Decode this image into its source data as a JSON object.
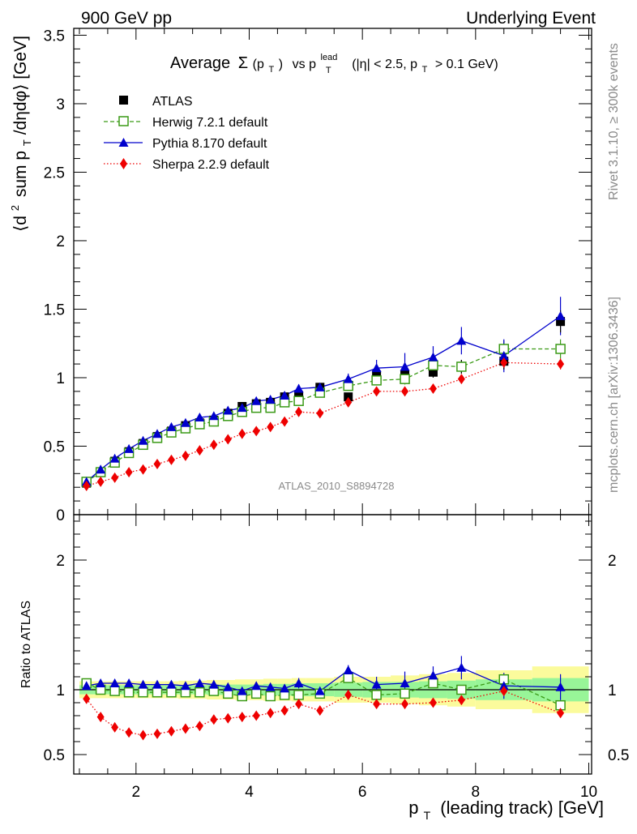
{
  "header": {
    "left": "900 GeV pp",
    "right": "Underlying Event"
  },
  "side_labels": {
    "rivet": "Rivet 3.1.10, ≥ 300k events",
    "mcplots": "mcplots.cern.ch [arXiv:1306.3436]"
  },
  "watermark": "ATLAS_2010_S8894728",
  "title": {
    "prefix": "Average",
    "sigma": "Σ",
    "sigma_arg": "(p",
    "sigma_sub": "T",
    "sigma_close": ")",
    "vs": "vs p",
    "lead_sup": "lead",
    "lead_sub": "T",
    "cond1": "(|η| < 2.5, p",
    "cond_sub": "T",
    "cond2": "> 0.1 GeV)"
  },
  "ylabel_main": {
    "part1": "⟨d",
    "sup": "2",
    "part2": "sum p",
    "sub": "T",
    "part3": "/dηdφ⟩ [GeV]"
  },
  "ylabel_ratio": "Ratio to ATLAS",
  "xlabel": {
    "p": "p",
    "sub": "T",
    "rest": "(leading track) [GeV]"
  },
  "legend": [
    {
      "label": "ATLAS"
    },
    {
      "label": "Herwig 7.2.1 default"
    },
    {
      "label": "Pythia 8.170 default"
    },
    {
      "label": "Sherpa 2.2.9 default"
    }
  ],
  "colors": {
    "atlas": "#000000",
    "herwig": "#3a9a16",
    "pythia": "#0000cc",
    "sherpa": "#ee0000",
    "band_inner": "#98f598",
    "band_outer": "#fbfb9c"
  },
  "chart_data": {
    "type": "scatter",
    "x": [
      1.125,
      1.375,
      1.625,
      1.875,
      2.125,
      2.375,
      2.625,
      2.875,
      3.125,
      3.375,
      3.625,
      3.875,
      4.125,
      4.375,
      4.625,
      4.875,
      5.25,
      5.75,
      6.25,
      6.75,
      7.25,
      7.75,
      8.5,
      9.5
    ],
    "xlim": [
      0.9,
      10.05
    ],
    "ylim_main": [
      0,
      3.55
    ],
    "ylim_ratio": [
      0.35,
      2.35
    ],
    "xticks": [
      2,
      4,
      6,
      8,
      10
    ],
    "yticks_main": [
      0,
      0.5,
      1,
      1.5,
      2,
      2.5,
      3,
      3.5
    ],
    "yticks_main_labels": [
      "0",
      "0.5",
      "1",
      "1.5",
      "2",
      "2.5",
      "3",
      "3.5"
    ],
    "yticks_ratio": [
      0.5,
      1,
      2
    ],
    "yticks_ratio_labels": [
      "0.5",
      "1",
      "2"
    ],
    "atlas": [
      0.23,
      0.31,
      0.39,
      0.46,
      0.52,
      0.57,
      0.61,
      0.65,
      0.67,
      0.69,
      0.74,
      0.79,
      0.81,
      0.82,
      0.86,
      0.87,
      0.93,
      0.86,
      1.02,
      1.02,
      1.04,
      1.08,
      1.12,
      1.41
    ],
    "atlas_err": [
      0.01,
      0.01,
      0.01,
      0.01,
      0.01,
      0.01,
      0.01,
      0.01,
      0.01,
      0.01,
      0.01,
      0.01,
      0.02,
      0.02,
      0.02,
      0.02,
      0.02,
      0.02,
      0.03,
      0.03,
      0.04,
      0.05,
      0.06,
      0.08
    ],
    "series": [
      {
        "name": "Herwig 7.2.1 default",
        "key": "herwig",
        "values": [
          0.24,
          0.31,
          0.38,
          0.45,
          0.51,
          0.56,
          0.6,
          0.63,
          0.66,
          0.68,
          0.72,
          0.75,
          0.78,
          0.78,
          0.82,
          0.83,
          0.89,
          0.94,
          0.98,
          0.99,
          1.09,
          1.08,
          1.21,
          1.21
        ],
        "errors": [
          0.01,
          0.01,
          0.01,
          0.01,
          0.01,
          0.01,
          0.01,
          0.01,
          0.01,
          0.01,
          0.01,
          0.01,
          0.01,
          0.01,
          0.02,
          0.02,
          0.02,
          0.03,
          0.03,
          0.04,
          0.04,
          0.05,
          0.06,
          0.07
        ],
        "ratio": [
          1.05,
          1.0,
          0.99,
          0.98,
          0.98,
          0.98,
          0.98,
          0.98,
          0.98,
          0.99,
          0.97,
          0.95,
          0.97,
          0.95,
          0.96,
          0.96,
          0.97,
          1.09,
          0.96,
          0.97,
          1.05,
          1.0,
          1.08,
          0.88
        ]
      },
      {
        "name": "Pythia 8.170 default",
        "key": "pythia",
        "values": [
          0.24,
          0.33,
          0.41,
          0.48,
          0.54,
          0.59,
          0.64,
          0.67,
          0.71,
          0.72,
          0.76,
          0.78,
          0.83,
          0.84,
          0.87,
          0.92,
          0.93,
          0.99,
          1.07,
          1.08,
          1.15,
          1.27,
          1.16,
          1.45
        ],
        "errors": [
          0.01,
          0.01,
          0.01,
          0.01,
          0.01,
          0.01,
          0.01,
          0.01,
          0.01,
          0.01,
          0.02,
          0.02,
          0.02,
          0.02,
          0.02,
          0.03,
          0.03,
          0.04,
          0.06,
          0.1,
          0.08,
          0.1,
          0.12,
          0.14
        ],
        "ratio": [
          1.03,
          1.05,
          1.05,
          1.05,
          1.04,
          1.04,
          1.04,
          1.03,
          1.05,
          1.04,
          1.02,
          0.99,
          1.03,
          1.02,
          1.01,
          1.05,
          0.99,
          1.15,
          1.04,
          1.05,
          1.11,
          1.17,
          1.03,
          1.02
        ],
        "ratio_err": [
          0.01,
          0.01,
          0.01,
          0.01,
          0.01,
          0.01,
          0.01,
          0.01,
          0.01,
          0.01,
          0.02,
          0.02,
          0.02,
          0.02,
          0.03,
          0.04,
          0.03,
          0.04,
          0.06,
          0.09,
          0.07,
          0.09,
          0.1,
          0.1
        ]
      },
      {
        "name": "Sherpa 2.2.9 default",
        "key": "sherpa",
        "values": [
          0.21,
          0.24,
          0.27,
          0.31,
          0.33,
          0.37,
          0.4,
          0.43,
          0.47,
          0.51,
          0.55,
          0.59,
          0.61,
          0.64,
          0.68,
          0.75,
          0.74,
          0.82,
          0.9,
          0.9,
          0.92,
          0.99,
          1.11,
          1.1
        ],
        "errors": [
          0.01,
          0.01,
          0.01,
          0.01,
          0.01,
          0.01,
          0.01,
          0.01,
          0.01,
          0.01,
          0.01,
          0.01,
          0.01,
          0.01,
          0.01,
          0.02,
          0.02,
          0.02,
          0.02,
          0.02,
          0.02,
          0.03,
          0.04,
          0.04
        ],
        "ratio": [
          0.93,
          0.79,
          0.71,
          0.67,
          0.65,
          0.66,
          0.68,
          0.7,
          0.72,
          0.77,
          0.78,
          0.79,
          0.8,
          0.82,
          0.84,
          0.89,
          0.84,
          0.96,
          0.89,
          0.89,
          0.9,
          0.92,
          0.99,
          0.82
        ]
      }
    ],
    "ratio_bands": {
      "x_edges": [
        1.0,
        1.25,
        1.5,
        1.75,
        2.0,
        2.25,
        2.5,
        2.75,
        3.0,
        3.25,
        3.5,
        3.75,
        4.0,
        4.25,
        4.5,
        4.75,
        5.0,
        5.5,
        6.0,
        6.5,
        7.0,
        7.5,
        8.0,
        9.0,
        10.0
      ],
      "inner": [
        0.035,
        0.035,
        0.035,
        0.035,
        0.035,
        0.035,
        0.035,
        0.035,
        0.035,
        0.04,
        0.04,
        0.04,
        0.04,
        0.045,
        0.045,
        0.05,
        0.05,
        0.055,
        0.06,
        0.06,
        0.065,
        0.07,
        0.08,
        0.09
      ],
      "outer": [
        0.065,
        0.065,
        0.065,
        0.065,
        0.065,
        0.065,
        0.065,
        0.07,
        0.07,
        0.075,
        0.075,
        0.08,
        0.08,
        0.085,
        0.085,
        0.09,
        0.09,
        0.1,
        0.1,
        0.11,
        0.12,
        0.13,
        0.15,
        0.18
      ]
    }
  }
}
